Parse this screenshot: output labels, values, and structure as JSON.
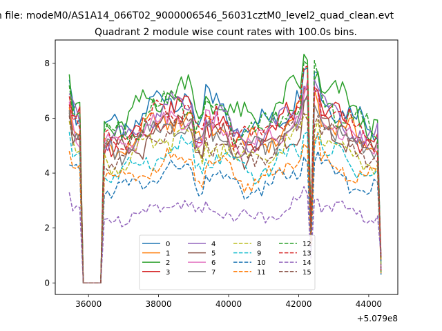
{
  "chart_data": {
    "type": "line",
    "suptitle": "n file: modeM0/AS1A14_066T02_9000006546_56031cztM0_level2_quad_clean.evt",
    "title": "Quadrant 2 module wise count rates with 100.0s bins.",
    "xlabel": "",
    "ylabel": "",
    "x_offset_label": "+5.079e8",
    "xlim": [
      35050,
      44830
    ],
    "ylim": [
      -0.42,
      8.85
    ],
    "x_ticks": [
      36000,
      38000,
      40000,
      42000,
      44000
    ],
    "x_tick_labels": [
      "36000",
      "38000",
      "40000",
      "42000",
      "44000"
    ],
    "y_ticks": [
      0,
      2,
      4,
      6,
      8
    ],
    "y_tick_labels": [
      "0",
      "2",
      "4",
      "6",
      "8"
    ],
    "legend_position": "lower center",
    "segments": [
      {
        "start": 35450,
        "end": 35850,
        "step": 100
      },
      {
        "start": 35850,
        "end": 36350,
        "step": 250
      },
      {
        "start": 36350,
        "end": 44350,
        "step": 100
      }
    ],
    "gap_window": [
      35850,
      36350
    ],
    "drop_x": 42350,
    "series": [
      {
        "name": "0",
        "color": "#1f77b4",
        "dash": "solid",
        "base": 6.25,
        "amp": 0.35,
        "start_value": 7.4
      },
      {
        "name": "1",
        "color": "#ff7f0e",
        "dash": "solid",
        "base": 5.55,
        "amp": 0.3,
        "start_value": 6.4
      },
      {
        "name": "2",
        "color": "#2ca02c",
        "dash": "solid",
        "base": 6.5,
        "amp": 0.35,
        "start_value": 7.6
      },
      {
        "name": "3",
        "color": "#d62728",
        "dash": "solid",
        "base": 5.75,
        "amp": 0.3,
        "start_value": 6.8
      },
      {
        "name": "4",
        "color": "#9467bd",
        "dash": "solid",
        "base": 5.85,
        "amp": 0.3,
        "start_value": 6.9
      },
      {
        "name": "5",
        "color": "#8c564b",
        "dash": "solid",
        "base": 5.25,
        "amp": 0.3,
        "start_value": 6.2
      },
      {
        "name": "6",
        "color": "#e377c2",
        "dash": "solid",
        "base": 5.5,
        "amp": 0.3,
        "start_value": 6.6
      },
      {
        "name": "7",
        "color": "#7f7f7f",
        "dash": "solid",
        "base": 5.35,
        "amp": 0.3,
        "start_value": 6.3
      },
      {
        "name": "8",
        "color": "#bcbd22",
        "dash": "dashed",
        "base": 4.9,
        "amp": 0.28,
        "start_value": 5.9
      },
      {
        "name": "9",
        "color": "#17becf",
        "dash": "dashed",
        "base": 4.45,
        "amp": 0.25,
        "start_value": 5.5
      },
      {
        "name": "10",
        "color": "#1f77b4",
        "dash": "dashed",
        "base": 3.75,
        "amp": 0.22,
        "start_value": 4.3
      },
      {
        "name": "11",
        "color": "#ff7f0e",
        "dash": "dashed",
        "base": 4.1,
        "amp": 0.25,
        "start_value": 4.8
      },
      {
        "name": "12",
        "color": "#2ca02c",
        "dash": "dashed",
        "base": 6.1,
        "amp": 0.32,
        "start_value": 7.2
      },
      {
        "name": "13",
        "color": "#d62728",
        "dash": "dashed",
        "base": 5.9,
        "amp": 0.3,
        "start_value": 6.5
      },
      {
        "name": "14",
        "color": "#9467bd",
        "dash": "dashed",
        "base": 2.65,
        "amp": 0.2,
        "start_value": 3.3
      },
      {
        "name": "15",
        "color": "#8c564b",
        "dash": "dashed",
        "base": 5.15,
        "amp": 0.28,
        "start_value": 6.1
      }
    ]
  }
}
